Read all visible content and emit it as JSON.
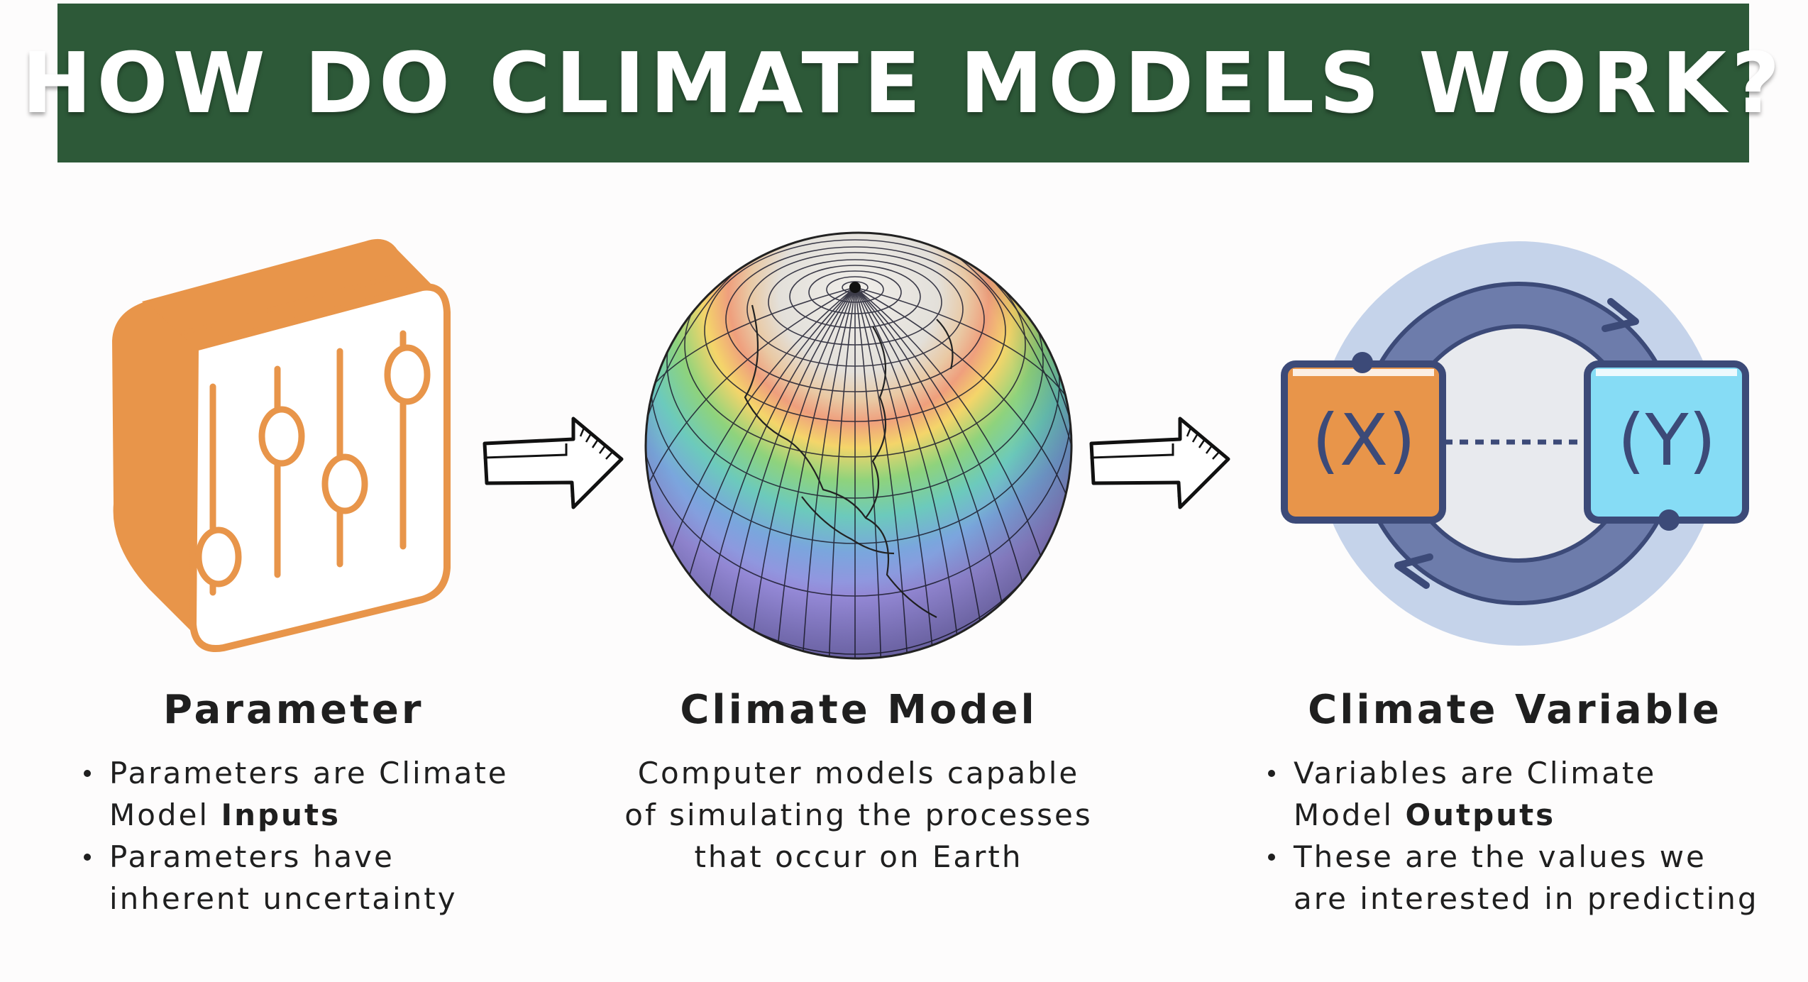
{
  "title": "HOW DO CLIMATE MODELS WORK?",
  "parameter": {
    "title": "Parameter",
    "icon": "sliders-icon",
    "bullets": [
      {
        "pre": "Parameters are Climate Model ",
        "bold": "Inputs"
      },
      {
        "pre": "Parameters have inherent uncertainty",
        "bold": ""
      }
    ]
  },
  "model": {
    "title": "Climate Model",
    "icon": "globe-grid-icon",
    "description": "Computer models capable of simulating the processes that occur on Earth"
  },
  "variable": {
    "title": "Climate Variable",
    "icon": "xy-cycle-icon",
    "x_label": "(X)",
    "y_label": "(Y)",
    "bullets": [
      {
        "pre": "Variables are Climate Model ",
        "bold": "Outputs"
      },
      {
        "pre": "These are the values we are interested in predicting",
        "bold": ""
      }
    ]
  },
  "colors": {
    "banner": "#2d5938",
    "orange": "#e8954a",
    "navy": "#3c4a78",
    "ring": "#6d7cab",
    "halo": "#c5d3ea",
    "y_box": "#86dcf5"
  }
}
